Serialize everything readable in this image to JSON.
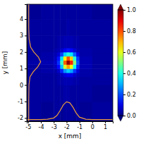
{
  "chart_data": {
    "type": "heatmap",
    "x_label": "x [mm]",
    "y_label": "y [mm]",
    "xlim": [
      -5.1,
      1.6
    ],
    "ylim": [
      -2.2,
      4.9
    ],
    "xticks": [
      -5,
      -4,
      -3,
      -2,
      -1,
      0,
      1
    ],
    "yticks": [
      -2,
      -1,
      0,
      1,
      2,
      3,
      4
    ],
    "x_edges": [
      -5.1,
      -4,
      -3,
      -2.75,
      -2.5,
      -2.25,
      -2,
      -1.75,
      -1.5,
      -1.25,
      -1,
      0,
      1.6
    ],
    "y_edges": [
      -2.2,
      -1,
      0,
      0.5,
      0.75,
      1,
      1.25,
      1.5,
      1.75,
      2,
      2.25,
      3,
      4,
      4.9
    ],
    "z": [
      [
        0.03,
        0.02,
        0.03,
        0.03,
        0.02,
        0.03,
        0.03,
        0.03,
        0.02,
        0.03,
        0.02,
        0.03
      ],
      [
        0.03,
        0.03,
        0.03,
        0.03,
        0.03,
        0.04,
        0.04,
        0.03,
        0.03,
        0.03,
        0.03,
        0.02
      ],
      [
        0.03,
        0.03,
        0.03,
        0.04,
        0.04,
        0.05,
        0.05,
        0.05,
        0.04,
        0.04,
        0.03,
        0.03
      ],
      [
        0.03,
        0.03,
        0.03,
        0.04,
        0.06,
        0.09,
        0.11,
        0.1,
        0.07,
        0.05,
        0.04,
        0.03
      ],
      [
        0.03,
        0.04,
        0.04,
        0.07,
        0.16,
        0.27,
        0.33,
        0.29,
        0.18,
        0.09,
        0.04,
        0.03
      ],
      [
        0.03,
        0.04,
        0.06,
        0.13,
        0.32,
        0.58,
        0.72,
        0.62,
        0.37,
        0.16,
        0.05,
        0.03
      ],
      [
        0.04,
        0.05,
        0.07,
        0.17,
        0.43,
        0.78,
        0.98,
        0.84,
        0.5,
        0.21,
        0.05,
        0.03
      ],
      [
        0.03,
        0.04,
        0.06,
        0.14,
        0.35,
        0.64,
        0.8,
        0.68,
        0.41,
        0.18,
        0.05,
        0.03
      ],
      [
        0.03,
        0.04,
        0.05,
        0.08,
        0.19,
        0.33,
        0.41,
        0.35,
        0.22,
        0.1,
        0.04,
        0.03
      ],
      [
        0.03,
        0.03,
        0.04,
        0.05,
        0.07,
        0.11,
        0.14,
        0.12,
        0.08,
        0.05,
        0.04,
        0.03
      ],
      [
        0.03,
        0.03,
        0.03,
        0.04,
        0.04,
        0.05,
        0.05,
        0.05,
        0.04,
        0.04,
        0.03,
        0.03
      ],
      [
        0.03,
        0.03,
        0.03,
        0.03,
        0.03,
        0.03,
        0.04,
        0.03,
        0.03,
        0.03,
        0.03,
        0.03
      ],
      [
        0.02,
        0.03,
        0.03,
        0.03,
        0.03,
        0.03,
        0.03,
        0.03,
        0.03,
        0.03,
        0.03,
        0.02
      ]
    ],
    "colorbar": {
      "range": [
        0,
        1
      ],
      "ticks": [
        {
          "value": 0,
          "label": "0.0"
        },
        {
          "value": 0.2,
          "label": "0.2"
        },
        {
          "value": 0.4,
          "label": "0.4"
        },
        {
          "value": 0.6,
          "label": "0.6"
        },
        {
          "value": 0.8,
          "label": "0.8"
        },
        {
          "value": 1,
          "label": "1.0"
        }
      ]
    },
    "series": [
      {
        "type": "line",
        "color": "#e89a3c",
        "x": [
          -5.1,
          -4,
          -3.5,
          -3,
          -2.75,
          -2.5,
          -2.25,
          -2,
          -1.75,
          -1.5,
          -1.25,
          -1,
          -0.5,
          0,
          1.6
        ],
        "values": [
          -2.1,
          -2.1,
          -2.08,
          -2.0,
          -1.85,
          -1.55,
          -1.2,
          -1.02,
          -1.08,
          -1.35,
          -1.7,
          -1.95,
          -2.08,
          -2.1,
          -2.1
        ]
      },
      {
        "type": "line",
        "color": "#e89a3c",
        "x": [
          -4.95,
          -4.95,
          -4.93,
          -4.85,
          -4.6,
          -4.25,
          -4.02,
          -4.2,
          -4.55,
          -4.8,
          -4.92,
          -4.95,
          -4.95
        ],
        "values": [
          -2.2,
          -1,
          0,
          0.5,
          0.8,
          1.1,
          1.4,
          1.7,
          2,
          2.3,
          2.8,
          3.5,
          4.9
        ]
      }
    ]
  }
}
